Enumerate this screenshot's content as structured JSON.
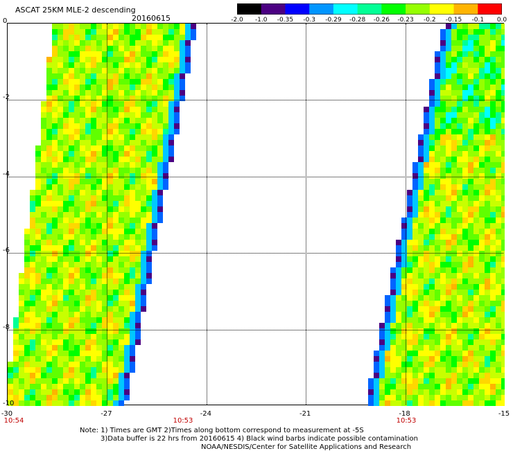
{
  "header": {
    "product": "ASCAT 25KM MLE-2 descending",
    "date": "20160615"
  },
  "colorbar": {
    "labels": [
      "-2.0",
      "-1.0",
      "-0.35",
      "-0.3",
      "-0.29",
      "-0.28",
      "-0.26",
      "-0.23",
      "-0.2",
      "-0.15",
      "-0.1",
      "0.0"
    ],
    "colors": [
      "#000000",
      "#4b0082",
      "#0000ff",
      "#0096ff",
      "#00ffff",
      "#00ff96",
      "#00ff00",
      "#96ff00",
      "#ffff00",
      "#ffb400",
      "#ff0000"
    ]
  },
  "axes": {
    "x_ticks": [
      "-30",
      "-27",
      "-24",
      "-21",
      "-18",
      "-15"
    ],
    "y_ticks": [
      "0",
      "-2",
      "-4",
      "-6",
      "-8",
      "-10"
    ],
    "times": [
      "10:54",
      "10:53",
      "10:53"
    ]
  },
  "notes": {
    "line1": "Note: 1) Times are GMT 2)Times along bottom correspond to measurement at -5S",
    "line2": "3)Data buffer is 22 hrs from 20160615 4) Black wind barbs indicate possible contamination",
    "line3": "NOAA/NESDIS/Center for Satellite Applications and Research"
  }
}
